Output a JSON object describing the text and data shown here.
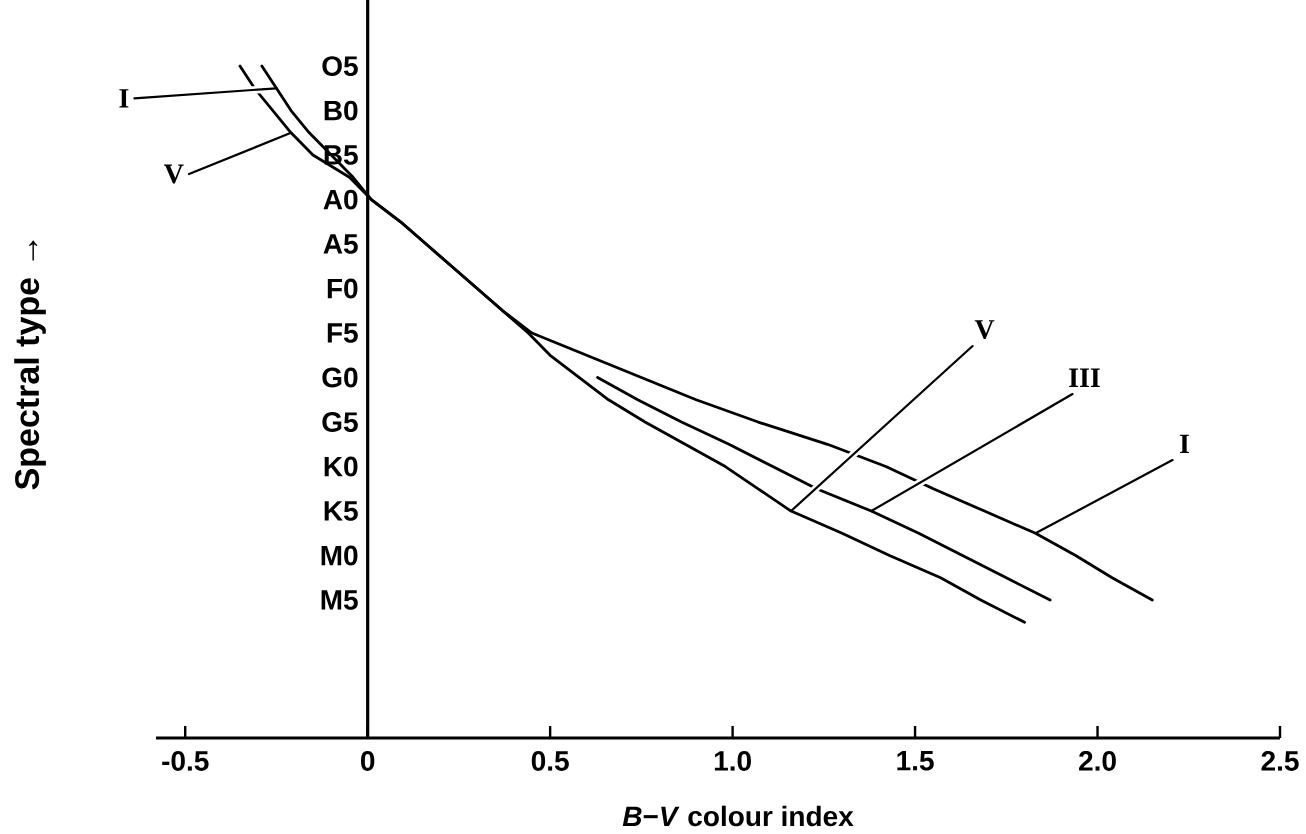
{
  "chart_data": {
    "type": "line",
    "orientation": "horizontal",
    "xlabel": "*B*−*V* colour index",
    "ylabel": "Spectral type →",
    "categories": [
      "O5",
      null,
      "B0",
      null,
      "B5",
      null,
      "A0",
      null,
      "A5",
      null,
      "F0",
      null,
      "F5",
      null,
      "G0",
      null,
      "G5",
      null,
      "K0",
      null,
      "K5",
      null,
      "M0",
      null,
      "M5",
      null
    ],
    "xlim": [
      -0.58,
      2.5
    ],
    "xticks": [
      -0.5,
      0,
      0.5,
      {
        "value": 1,
        "label": "1.0"
      },
      1.5,
      {
        "value": 2,
        "label": "2.0"
      },
      2.5
    ],
    "marker": "none",
    "line_style": "solid",
    "series": [
      {
        "name": "I",
        "color": "#000000",
        "values": [
          -0.29,
          -0.25,
          -0.21,
          -0.16,
          -0.1,
          -0.04,
          0.01,
          0.09,
          0.16,
          0.23,
          0.3,
          0.37,
          0.45,
          0.6,
          0.75,
          0.9,
          1.07,
          1.26,
          1.42,
          1.55,
          1.69,
          1.83,
          1.94,
          2.04,
          2.15,
          null
        ]
      },
      {
        "name": "III",
        "color": "#000000",
        "values": [
          null,
          null,
          null,
          null,
          null,
          null,
          null,
          null,
          null,
          null,
          null,
          null,
          null,
          null,
          0.63,
          0.74,
          0.86,
          0.99,
          1.11,
          1.23,
          1.38,
          1.51,
          1.63,
          1.75,
          1.87,
          null
        ]
      },
      {
        "name": "V",
        "color": "#000000",
        "values": [
          -0.35,
          -0.31,
          -0.26,
          -0.21,
          -0.15,
          -0.05,
          0.01,
          0.09,
          0.16,
          0.23,
          0.3,
          0.37,
          0.44,
          0.5,
          0.58,
          0.66,
          0.76,
          0.87,
          0.98,
          1.07,
          1.16,
          1.3,
          1.43,
          1.57,
          1.68,
          1.8
        ]
      }
    ],
    "annotations": [
      {
        "text": "I",
        "x": -0.25
      },
      {
        "text": "V",
        "x": 1.16,
        "y": "K5"
      }
    ]
  }
}
